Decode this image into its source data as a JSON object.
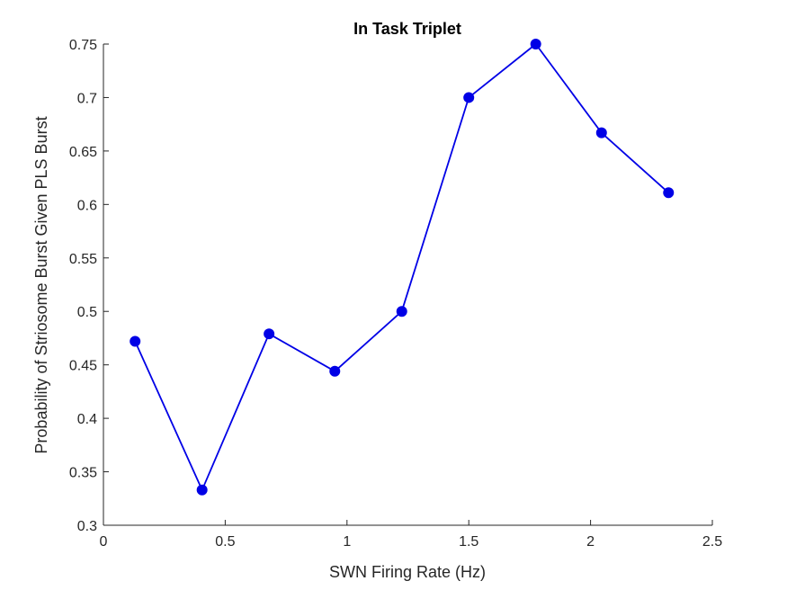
{
  "chart_data": {
    "type": "line",
    "title": "In Task Triplet",
    "xlabel": "SWN Firing Rate (Hz)",
    "ylabel": "Probability of Striosome Burst Given PLS Burst",
    "xlim": [
      0,
      2.5
    ],
    "ylim": [
      0.3,
      0.75
    ],
    "xticks": [
      0,
      0.5,
      1,
      1.5,
      2,
      2.5
    ],
    "yticks": [
      0.3,
      0.35,
      0.4,
      0.45,
      0.5,
      0.55,
      0.6,
      0.65,
      0.7,
      0.75
    ],
    "xtick_labels": [
      "0",
      "0.5",
      "1",
      "1.5",
      "2",
      "2.5"
    ],
    "ytick_labels": [
      "0.3",
      "0.35",
      "0.4",
      "0.45",
      "0.5",
      "0.55",
      "0.6",
      "0.65",
      "0.7",
      "0.75"
    ],
    "grid": false,
    "series": [
      {
        "color": "#0000e6",
        "marker": "filled-circle",
        "x": [
          0.13,
          0.405,
          0.68,
          0.95,
          1.225,
          1.5,
          1.775,
          2.045,
          2.32
        ],
        "y": [
          0.472,
          0.333,
          0.479,
          0.444,
          0.5,
          0.7,
          0.75,
          0.667,
          0.611
        ]
      }
    ]
  }
}
